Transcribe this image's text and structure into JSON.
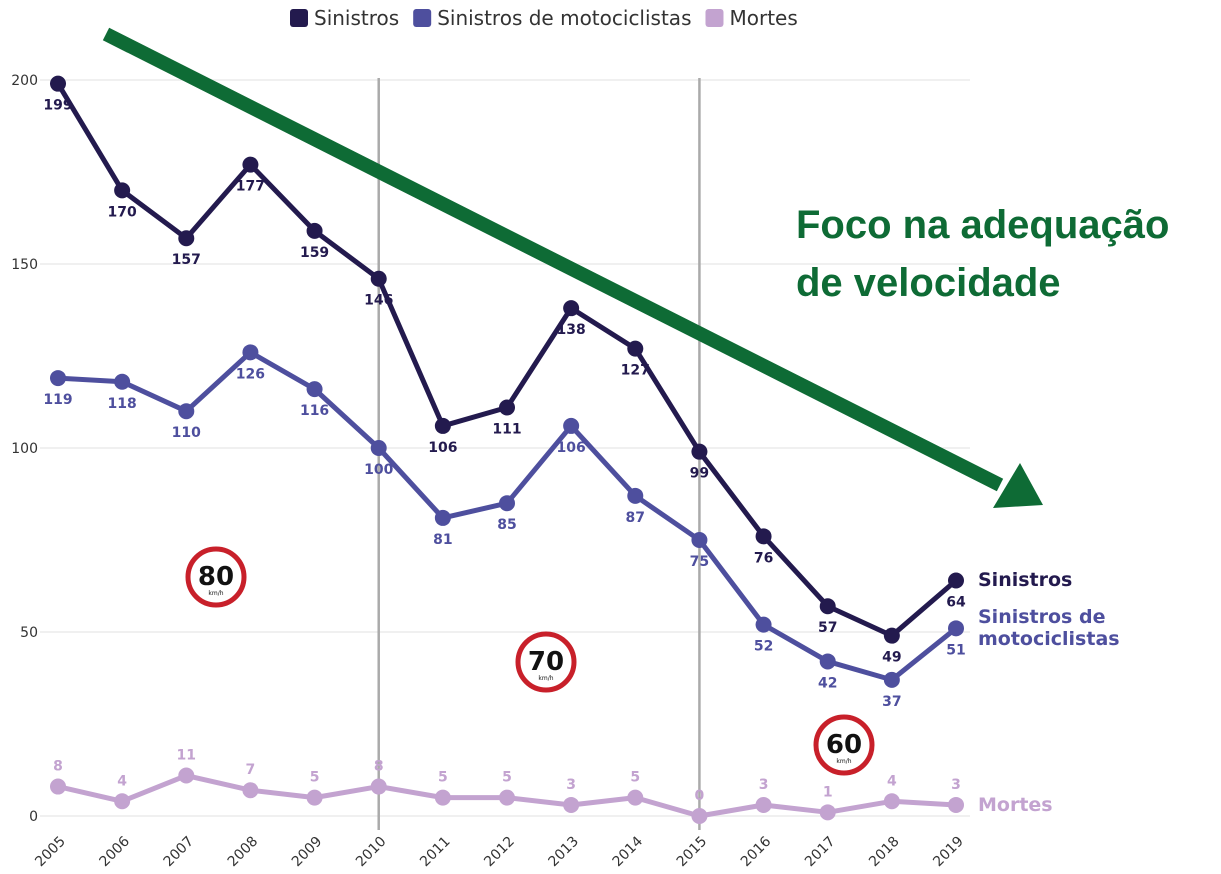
{
  "chart_data": {
    "type": "line",
    "x": [
      2005,
      2006,
      2007,
      2008,
      2009,
      2010,
      2011,
      2012,
      2013,
      2014,
      2015,
      2016,
      2017,
      2018,
      2019
    ],
    "xlim": [
      2005,
      2019
    ],
    "xticks": [
      2005,
      2006,
      2007,
      2008,
      2009,
      2010,
      2011,
      2012,
      2013,
      2014,
      2015,
      2016,
      2017,
      2018,
      2019
    ],
    "ylim": [
      0,
      200
    ],
    "yticks": [
      0,
      50,
      100,
      150,
      200
    ],
    "grid": true,
    "vlines": [
      2010,
      2015
    ],
    "series": [
      {
        "name": "Sinistros",
        "color": "#231a4e",
        "values": [
          199,
          170,
          157,
          177,
          159,
          146,
          106,
          111,
          138,
          127,
          99,
          76,
          57,
          49,
          64
        ]
      },
      {
        "name": "Sinistros de motociclistas",
        "color": "#4e4f9e",
        "values": [
          119,
          118,
          110,
          126,
          116,
          100,
          81,
          85,
          106,
          87,
          75,
          52,
          42,
          37,
          51
        ]
      },
      {
        "name": "Mortes",
        "color": "#c3a3d0",
        "values": [
          8,
          4,
          11,
          7,
          5,
          8,
          5,
          5,
          3,
          5,
          0,
          3,
          1,
          4,
          3
        ]
      }
    ],
    "speed_signs": [
      {
        "speed": "80",
        "unit": "km/h"
      },
      {
        "speed": "70",
        "unit": "km/h"
      },
      {
        "speed": "60",
        "unit": "km/h"
      }
    ],
    "annotation": "Foco na adequação de velocidade"
  }
}
